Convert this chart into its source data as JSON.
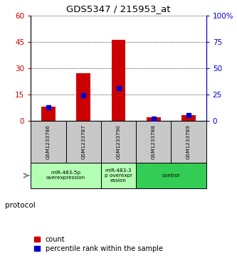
{
  "title": "GDS5347 / 215953_at",
  "samples": [
    "GSM1233786",
    "GSM1233787",
    "GSM1233790",
    "GSM1233788",
    "GSM1233789"
  ],
  "count_values": [
    8,
    27,
    46,
    2,
    3
  ],
  "percentile_values": [
    13,
    24,
    31,
    2,
    5
  ],
  "left_ylim": [
    0,
    60
  ],
  "right_ylim": [
    0,
    100
  ],
  "left_yticks": [
    0,
    15,
    30,
    45,
    60
  ],
  "right_yticks": [
    0,
    25,
    50,
    75,
    100
  ],
  "right_yticklabels": [
    "0",
    "25",
    "50",
    "75",
    "100%"
  ],
  "left_color": "#cc0000",
  "right_color": "#0000cc",
  "bar_color_red": "#cc0000",
  "marker_color_blue": "#0000cc",
  "groups": [
    {
      "label": "miR-483-5p\noverexpression",
      "sample_indices": [
        0,
        1
      ],
      "color": "#b3ffb3"
    },
    {
      "label": "miR-483-3\np overexpr\nession",
      "sample_indices": [
        2
      ],
      "color": "#b3ffb3"
    },
    {
      "label": "control",
      "sample_indices": [
        3,
        4
      ],
      "color": "#33cc55"
    }
  ],
  "protocol_label": "protocol",
  "legend_count_label": "count",
  "legend_pct_label": "percentile rank within the sample",
  "sample_box_color": "#c8c8c8",
  "red_bar_width": 0.4
}
